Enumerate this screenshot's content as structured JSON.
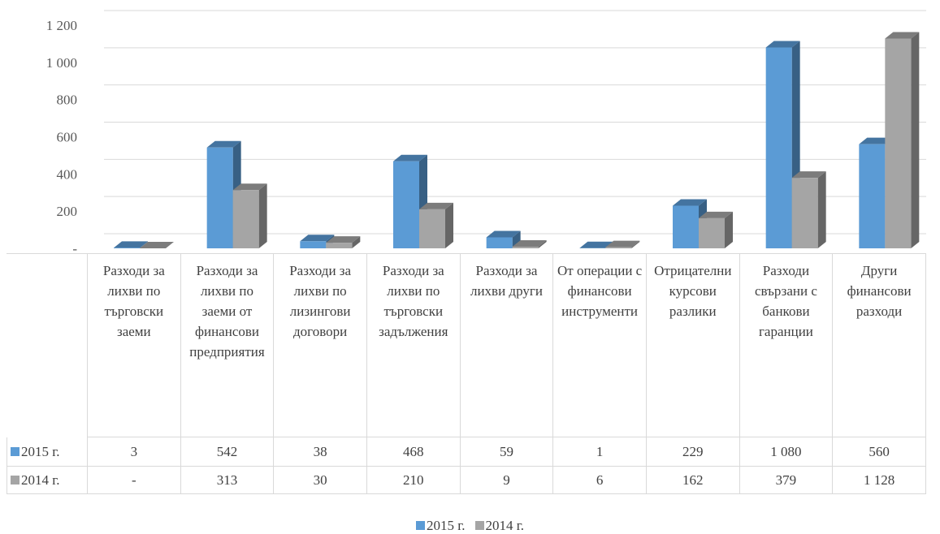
{
  "chart_data": {
    "type": "bar3d",
    "categories": [
      "Разходи за лихви по търговски заеми",
      "Разходи за лихви по заеми от финансови предприятия",
      "Разходи за лихви по лизингови договори",
      "Разходи за лихви по търговски задължения",
      "Разходи за лихви други",
      "От операции с финансови инструменти",
      "Отрицателни курсови разлики",
      "Разходи свързани с банкови гаранции",
      "Други финансови разходи"
    ],
    "series": [
      {
        "name": "2015 г.",
        "color": "#5b9bd5",
        "values": [
          3,
          542,
          38,
          468,
          59,
          1,
          229,
          1080,
          560
        ],
        "value_labels": [
          "3",
          "542",
          "38",
          "468",
          "59",
          "1",
          "229",
          "1 080",
          "560"
        ]
      },
      {
        "name": "2014 г.",
        "color": "#a5a5a5",
        "values": [
          0,
          313,
          30,
          210,
          9,
          6,
          162,
          379,
          1128
        ],
        "value_labels": [
          "-",
          "313",
          "30",
          "210",
          "9",
          "6",
          "162",
          "379",
          "1 128"
        ]
      }
    ],
    "ylim": [
      0,
      1200
    ],
    "yticks": [
      {
        "value": 0,
        "label": "-"
      },
      200,
      400,
      600,
      800,
      {
        "value": 1000,
        "label": "1 000"
      },
      {
        "value": 1200,
        "label": "1 200"
      }
    ],
    "grid": true,
    "legend": "bottom"
  }
}
